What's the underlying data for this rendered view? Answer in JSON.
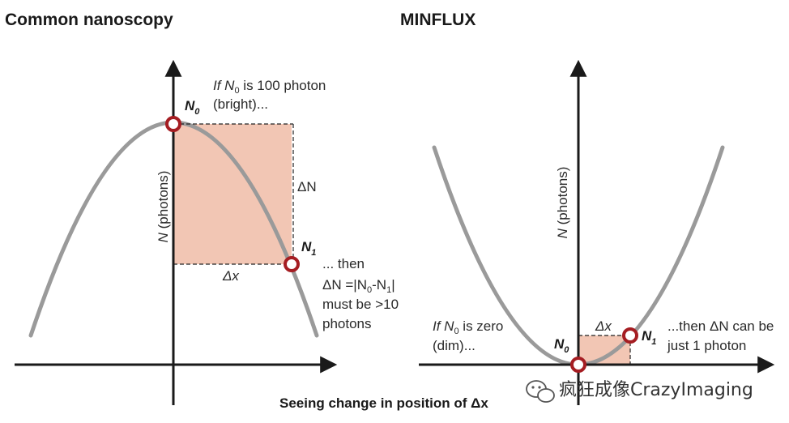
{
  "left_panel": {
    "title": "Common nanoscopy",
    "y_axis_label": "N (photons)",
    "point_n0": "N",
    "point_n0_sub": "0",
    "point_n1": "N",
    "point_n1_sub": "1",
    "delta_n": "ΔN",
    "delta_x": "Δx",
    "note_top_line1": "If N",
    "note_top_sub": "0",
    "note_top_line1_rest": " is 100 photon",
    "note_top_line2": "(bright)...",
    "note_bottom_line1": "... then",
    "note_bottom_line2_a": "ΔN =|N",
    "note_bottom_line2_sub0": "0",
    "note_bottom_line2_b": "-N",
    "note_bottom_line2_sub1": "1",
    "note_bottom_line2_c": "|",
    "note_bottom_line3": "must be >10",
    "note_bottom_line4": "photons"
  },
  "right_panel": {
    "title": "MINFLUX",
    "y_axis_label": "N (photons)",
    "point_n0": "N",
    "point_n0_sub": "0",
    "point_n1": "N",
    "point_n1_sub": "1",
    "delta_x": "Δx",
    "note_left_line1": "If N",
    "note_left_sub": "0",
    "note_left_line1_rest": " is zero",
    "note_left_line2": "(dim)...",
    "note_right_line1": "...then ΔN can be",
    "note_right_line2": "just 1 photon"
  },
  "caption": "Seeing change in position of Δx",
  "watermark": "疯狂成像CrazyImaging",
  "colors": {
    "curve": "#9a9a9a",
    "shade": "#f2c6b4",
    "point": "#a51d22",
    "axis": "#1a1a1a"
  }
}
